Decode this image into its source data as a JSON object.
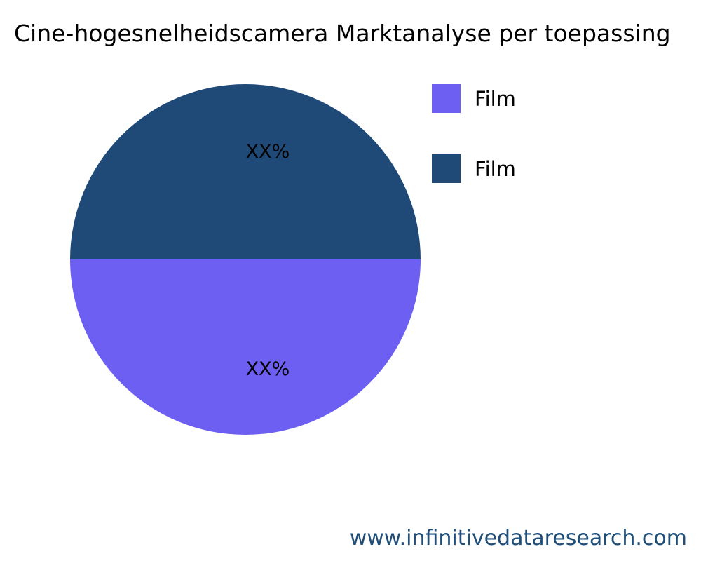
{
  "chart_data": {
    "type": "pie",
    "title": "Cine-hogesnelheidscamera Marktanalyse per toepassing",
    "slices": [
      {
        "name": "Film",
        "value": 50,
        "label": "XX%",
        "color": "#6c5ff2"
      },
      {
        "name": "Film",
        "value": 50,
        "label": "XX%",
        "color": "#1f4a78"
      }
    ],
    "legend_placement": "top-right"
  },
  "watermark": "www.infinitivedataresearch.com"
}
